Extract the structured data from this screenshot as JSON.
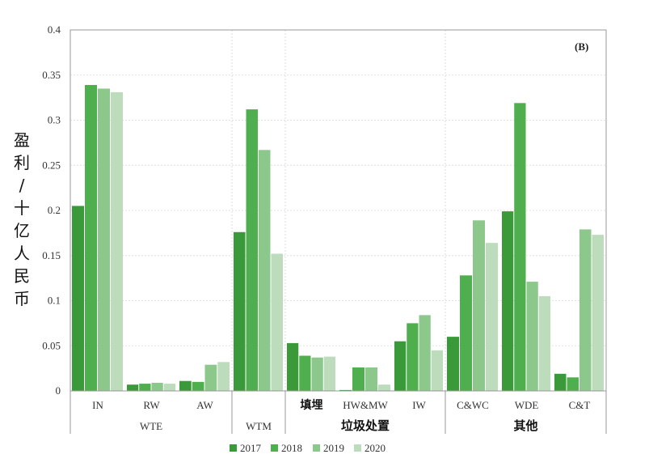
{
  "chart_data": {
    "type": "bar",
    "panel_label": "(B)",
    "ylabel": "盈利/十亿人民币",
    "ylim": [
      0,
      0.4
    ],
    "y_ticks": [
      "0",
      "0.05",
      "0.1",
      "0.15",
      "0.2",
      "0.25",
      "0.3",
      "0.35",
      "0.4"
    ],
    "grid": true,
    "legend_position": "bottom",
    "categories": [
      "IN",
      "RW",
      "AW",
      "",
      "填埋",
      "HW&MW",
      "IW",
      "C&WC",
      "WDE",
      "C&T"
    ],
    "groups": [
      {
        "label": "WTE",
        "categories": [
          "IN",
          "RW",
          "AW"
        ]
      },
      {
        "label": "WTM",
        "categories": [
          ""
        ]
      },
      {
        "label": "垃圾处置",
        "categories": [
          "填埋",
          "HW&MW",
          "IW"
        ]
      },
      {
        "label": "其他",
        "categories": [
          "C&WC",
          "WDE",
          "C&T"
        ]
      }
    ],
    "series": [
      {
        "name": "2017",
        "color": "#3a9a3a",
        "values": [
          0.205,
          0.007,
          0.011,
          0.176,
          0.053,
          0.001,
          0.055,
          0.06,
          0.199,
          0.019
        ]
      },
      {
        "name": "2018",
        "color": "#4faf4f",
        "values": [
          0.339,
          0.008,
          0.01,
          0.312,
          0.039,
          0.026,
          0.075,
          0.128,
          0.319,
          0.015
        ]
      },
      {
        "name": "2019",
        "color": "#8cc78c",
        "values": [
          0.335,
          0.009,
          0.029,
          0.267,
          0.037,
          0.026,
          0.084,
          0.189,
          0.121,
          0.179
        ]
      },
      {
        "name": "2020",
        "color": "#bcdcbc",
        "values": [
          0.331,
          0.008,
          0.032,
          0.152,
          0.038,
          0.007,
          0.045,
          0.164,
          0.105,
          0.173
        ]
      }
    ]
  }
}
